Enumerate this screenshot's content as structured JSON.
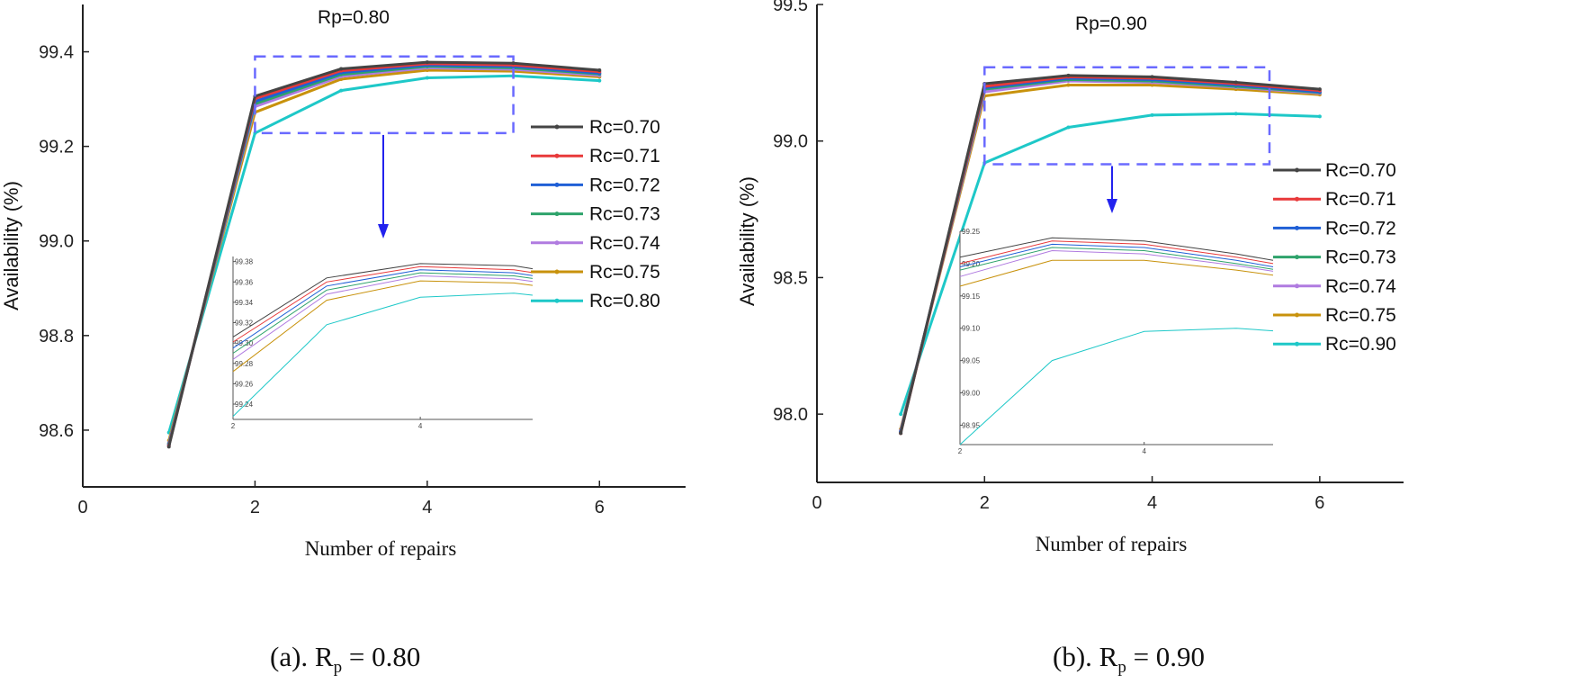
{
  "colors": {
    "Rc=0.70": "#444444",
    "Rc=0.71": "#e8393a",
    "Rc=0.72": "#1f5fd6",
    "Rc=0.73": "#2ea36b",
    "Rc=0.74": "#b07be0",
    "Rc=0.75": "#c8920c",
    "Rc=0.80": "#1ec8c8",
    "Rc=0.90": "#1ec8c8",
    "zoom_box": "#6a6aff",
    "arrow": "#2222ee"
  },
  "chart_data": [
    {
      "type": "line",
      "title": "Rp=0.80",
      "xlabel": "Number of repairs",
      "ylabel": "Availability (%)",
      "caption": {
        "prefix": "(a). R",
        "sub": "p",
        "suffix": " = 0.80"
      },
      "xlim": [
        0,
        7
      ],
      "ylim": [
        98.48,
        99.5
      ],
      "xticks": [
        0,
        2,
        4,
        6
      ],
      "yticks": [
        98.6,
        98.8,
        99.0,
        99.2,
        99.4
      ],
      "x": [
        1,
        2,
        3,
        4,
        5,
        6
      ],
      "series": [
        {
          "name": "Rc=0.70",
          "values": [
            98.565,
            99.306,
            99.364,
            99.378,
            99.376,
            99.361
          ]
        },
        {
          "name": "Rc=0.71",
          "values": [
            98.567,
            99.301,
            99.36,
            99.375,
            99.372,
            99.358
          ]
        },
        {
          "name": "Rc=0.72",
          "values": [
            98.569,
            99.295,
            99.356,
            99.372,
            99.369,
            99.355
          ]
        },
        {
          "name": "Rc=0.73",
          "values": [
            98.571,
            99.29,
            99.352,
            99.369,
            99.366,
            99.353
          ]
        },
        {
          "name": "Rc=0.74",
          "values": [
            98.573,
            99.284,
            99.348,
            99.366,
            99.363,
            99.35
          ]
        },
        {
          "name": "Rc=0.75",
          "values": [
            98.578,
            99.272,
            99.342,
            99.361,
            99.359,
            99.347
          ]
        },
        {
          "name": "Rc=0.80",
          "values": [
            98.595,
            99.228,
            99.318,
            99.345,
            99.349,
            99.339
          ]
        }
      ],
      "inset": {
        "xlim": [
          2,
          5.2
        ],
        "ylim": [
          99.225,
          99.385
        ],
        "xticks": [
          2,
          4
        ],
        "yticks": [
          99.24,
          99.26,
          99.28,
          99.3,
          99.32,
          99.34,
          99.36,
          99.38
        ],
        "xlabels": [
          "2",
          "4"
        ],
        "ylabels": [
          "99.24",
          "99.26",
          "99.28",
          "99.30",
          "99.32",
          "99.34",
          "99.36",
          "99.38"
        ]
      },
      "zoom_box": {
        "x": [
          2.0,
          5.0
        ],
        "y": [
          99.228,
          99.39
        ]
      }
    },
    {
      "type": "line",
      "title": "Rp=0.90",
      "xlabel": "Number of repairs",
      "ylabel": "Availability (%)",
      "caption": {
        "prefix": "(b). R",
        "sub": "p",
        "suffix": " = 0.90"
      },
      "xlim": [
        0,
        7
      ],
      "ylim": [
        97.75,
        99.5
      ],
      "xticks": [
        0,
        2,
        4,
        6
      ],
      "yticks": [
        98.0,
        98.5,
        99.0,
        99.5
      ],
      "ytick_labels": [
        "98.0",
        "98.5",
        "99.0",
        "99.5"
      ],
      "x": [
        1,
        2,
        3,
        4,
        5,
        6
      ],
      "series": [
        {
          "name": "Rc=0.70",
          "values": [
            97.93,
            99.21,
            99.24,
            99.235,
            99.215,
            99.19
          ]
        },
        {
          "name": "Rc=0.71",
          "values": [
            97.93,
            99.2,
            99.235,
            99.23,
            99.21,
            99.185
          ]
        },
        {
          "name": "Rc=0.72",
          "values": [
            97.935,
            99.195,
            99.23,
            99.225,
            99.205,
            99.18
          ]
        },
        {
          "name": "Rc=0.73",
          "values": [
            97.935,
            99.19,
            99.225,
            99.22,
            99.2,
            99.178
          ]
        },
        {
          "name": "Rc=0.74",
          "values": [
            97.94,
            99.18,
            99.22,
            99.215,
            99.197,
            99.175
          ]
        },
        {
          "name": "Rc=0.75",
          "values": [
            97.945,
            99.165,
            99.205,
            99.205,
            99.19,
            99.17
          ]
        },
        {
          "name": "Rc=0.90",
          "values": [
            98.0,
            98.92,
            99.05,
            99.095,
            99.1,
            99.09
          ]
        }
      ],
      "inset": {
        "xlim": [
          2,
          5.4
        ],
        "ylim": [
          98.92,
          99.25
        ],
        "xticks": [
          2,
          4
        ],
        "yticks": [
          98.95,
          99.0,
          99.05,
          99.1,
          99.15,
          99.2,
          99.25
        ],
        "xlabels": [
          "2",
          "4"
        ],
        "ylabels": [
          "98.95",
          "99.00",
          "99.05",
          "99.10",
          "99.15",
          "99.20",
          "99.25"
        ]
      },
      "zoom_box": {
        "x": [
          2.0,
          5.4
        ],
        "y": [
          98.915,
          99.27
        ]
      }
    }
  ]
}
